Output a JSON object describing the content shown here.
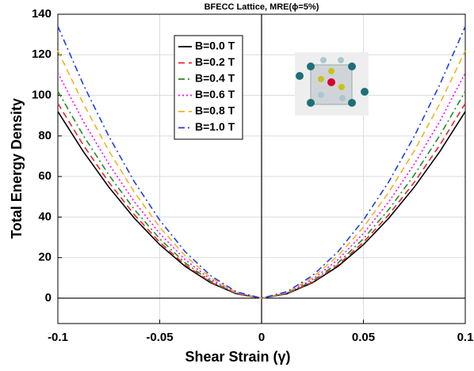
{
  "chart_data": {
    "type": "line",
    "title": "BFECC Lattice, MRE(ϕ=5%)",
    "x_label": "Shear Strain (γ)",
    "y_label": "Total Energy Density",
    "x": [
      -0.1,
      -0.0875,
      -0.075,
      -0.0625,
      -0.05,
      -0.0375,
      -0.025,
      -0.0125,
      0,
      0.0125,
      0.025,
      0.0375,
      0.05,
      0.0625,
      0.075,
      0.0875,
      0.1
    ],
    "series": [
      {
        "name": "B=0.0 T",
        "color": "#000000",
        "style": "solid",
        "values": [
          92,
          72.3,
          54.8,
          39.5,
          26.4,
          15.7,
          7.6,
          2.2,
          0,
          2.2,
          7.6,
          15.7,
          26.4,
          39.5,
          54.8,
          72.3,
          92
        ]
      },
      {
        "name": "B=0.2 T",
        "color": "#e8262a",
        "style": "dashed",
        "values": [
          96,
          75.5,
          57.2,
          41.2,
          27.6,
          16.4,
          7.9,
          2.3,
          0,
          2.3,
          7.9,
          16.4,
          27.6,
          41.2,
          57.2,
          75.5,
          96
        ]
      },
      {
        "name": "B=0.4 T",
        "color": "#228b22",
        "style": "dashdot",
        "values": [
          102,
          80.2,
          60.8,
          43.8,
          29.3,
          17.4,
          8.4,
          2.4,
          0,
          2.4,
          8.4,
          17.4,
          29.3,
          43.8,
          60.8,
          80.2,
          102
        ]
      },
      {
        "name": "B=0.6 T",
        "color": "#ff00ff",
        "style": "dotted",
        "values": [
          111,
          87.2,
          66.2,
          47.6,
          31.9,
          19,
          9.2,
          2.6,
          0,
          2.6,
          9.2,
          19,
          31.9,
          47.6,
          66.2,
          87.2,
          111
        ]
      },
      {
        "name": "B=0.8 T",
        "color": "#eeb422",
        "style": "dashed",
        "values": [
          122,
          95.9,
          72.7,
          52.3,
          35,
          20.9,
          10.1,
          2.9,
          0,
          2.9,
          10.1,
          20.9,
          35,
          52.3,
          72.7,
          95.9,
          122
        ]
      },
      {
        "name": "B=1.0 T",
        "color": "#1f3fe0",
        "style": "dashdot",
        "values": [
          134,
          105.3,
          79.9,
          57.5,
          38.5,
          22.9,
          11.1,
          3.2,
          0,
          3.2,
          11.1,
          22.9,
          38.5,
          57.5,
          79.9,
          105.3,
          134
        ]
      }
    ],
    "xlim": [
      -0.1,
      0.1
    ],
    "ylim": [
      -12.5,
      140
    ],
    "xticks": [
      -0.1,
      -0.05,
      0,
      0.05,
      0.1
    ],
    "yticks": [
      0,
      20,
      40,
      60,
      80,
      100,
      120,
      140
    ],
    "grid": true,
    "legend": "upper-left"
  }
}
